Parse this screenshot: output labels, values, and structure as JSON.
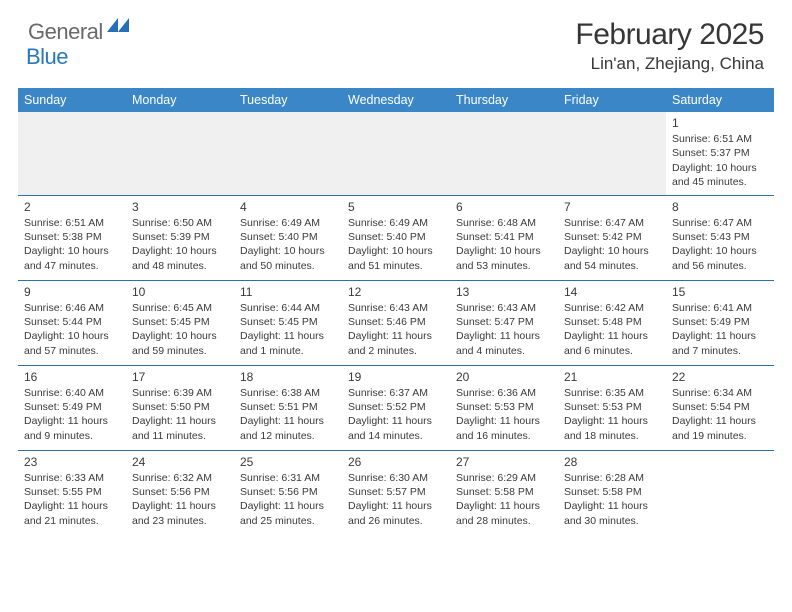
{
  "logo": {
    "text1": "General",
    "text2": "Blue",
    "color1": "#6a6a6a",
    "color2": "#2978bd"
  },
  "title": "February 2025",
  "location": "Lin'an, Zhejiang, China",
  "header_bg": "#3b86c6",
  "header_fg": "#ffffff",
  "sep_color": "#2e6fa8",
  "blank_bg": "#f0f0f0",
  "weekdays": [
    "Sunday",
    "Monday",
    "Tuesday",
    "Wednesday",
    "Thursday",
    "Friday",
    "Saturday"
  ],
  "weeks": [
    [
      null,
      null,
      null,
      null,
      null,
      null,
      {
        "d": "1",
        "sr": "Sunrise: 6:51 AM",
        "ss": "Sunset: 5:37 PM",
        "dl": "Daylight: 10 hours and 45 minutes."
      }
    ],
    [
      {
        "d": "2",
        "sr": "Sunrise: 6:51 AM",
        "ss": "Sunset: 5:38 PM",
        "dl": "Daylight: 10 hours and 47 minutes."
      },
      {
        "d": "3",
        "sr": "Sunrise: 6:50 AM",
        "ss": "Sunset: 5:39 PM",
        "dl": "Daylight: 10 hours and 48 minutes."
      },
      {
        "d": "4",
        "sr": "Sunrise: 6:49 AM",
        "ss": "Sunset: 5:40 PM",
        "dl": "Daylight: 10 hours and 50 minutes."
      },
      {
        "d": "5",
        "sr": "Sunrise: 6:49 AM",
        "ss": "Sunset: 5:40 PM",
        "dl": "Daylight: 10 hours and 51 minutes."
      },
      {
        "d": "6",
        "sr": "Sunrise: 6:48 AM",
        "ss": "Sunset: 5:41 PM",
        "dl": "Daylight: 10 hours and 53 minutes."
      },
      {
        "d": "7",
        "sr": "Sunrise: 6:47 AM",
        "ss": "Sunset: 5:42 PM",
        "dl": "Daylight: 10 hours and 54 minutes."
      },
      {
        "d": "8",
        "sr": "Sunrise: 6:47 AM",
        "ss": "Sunset: 5:43 PM",
        "dl": "Daylight: 10 hours and 56 minutes."
      }
    ],
    [
      {
        "d": "9",
        "sr": "Sunrise: 6:46 AM",
        "ss": "Sunset: 5:44 PM",
        "dl": "Daylight: 10 hours and 57 minutes."
      },
      {
        "d": "10",
        "sr": "Sunrise: 6:45 AM",
        "ss": "Sunset: 5:45 PM",
        "dl": "Daylight: 10 hours and 59 minutes."
      },
      {
        "d": "11",
        "sr": "Sunrise: 6:44 AM",
        "ss": "Sunset: 5:45 PM",
        "dl": "Daylight: 11 hours and 1 minute."
      },
      {
        "d": "12",
        "sr": "Sunrise: 6:43 AM",
        "ss": "Sunset: 5:46 PM",
        "dl": "Daylight: 11 hours and 2 minutes."
      },
      {
        "d": "13",
        "sr": "Sunrise: 6:43 AM",
        "ss": "Sunset: 5:47 PM",
        "dl": "Daylight: 11 hours and 4 minutes."
      },
      {
        "d": "14",
        "sr": "Sunrise: 6:42 AM",
        "ss": "Sunset: 5:48 PM",
        "dl": "Daylight: 11 hours and 6 minutes."
      },
      {
        "d": "15",
        "sr": "Sunrise: 6:41 AM",
        "ss": "Sunset: 5:49 PM",
        "dl": "Daylight: 11 hours and 7 minutes."
      }
    ],
    [
      {
        "d": "16",
        "sr": "Sunrise: 6:40 AM",
        "ss": "Sunset: 5:49 PM",
        "dl": "Daylight: 11 hours and 9 minutes."
      },
      {
        "d": "17",
        "sr": "Sunrise: 6:39 AM",
        "ss": "Sunset: 5:50 PM",
        "dl": "Daylight: 11 hours and 11 minutes."
      },
      {
        "d": "18",
        "sr": "Sunrise: 6:38 AM",
        "ss": "Sunset: 5:51 PM",
        "dl": "Daylight: 11 hours and 12 minutes."
      },
      {
        "d": "19",
        "sr": "Sunrise: 6:37 AM",
        "ss": "Sunset: 5:52 PM",
        "dl": "Daylight: 11 hours and 14 minutes."
      },
      {
        "d": "20",
        "sr": "Sunrise: 6:36 AM",
        "ss": "Sunset: 5:53 PM",
        "dl": "Daylight: 11 hours and 16 minutes."
      },
      {
        "d": "21",
        "sr": "Sunrise: 6:35 AM",
        "ss": "Sunset: 5:53 PM",
        "dl": "Daylight: 11 hours and 18 minutes."
      },
      {
        "d": "22",
        "sr": "Sunrise: 6:34 AM",
        "ss": "Sunset: 5:54 PM",
        "dl": "Daylight: 11 hours and 19 minutes."
      }
    ],
    [
      {
        "d": "23",
        "sr": "Sunrise: 6:33 AM",
        "ss": "Sunset: 5:55 PM",
        "dl": "Daylight: 11 hours and 21 minutes."
      },
      {
        "d": "24",
        "sr": "Sunrise: 6:32 AM",
        "ss": "Sunset: 5:56 PM",
        "dl": "Daylight: 11 hours and 23 minutes."
      },
      {
        "d": "25",
        "sr": "Sunrise: 6:31 AM",
        "ss": "Sunset: 5:56 PM",
        "dl": "Daylight: 11 hours and 25 minutes."
      },
      {
        "d": "26",
        "sr": "Sunrise: 6:30 AM",
        "ss": "Sunset: 5:57 PM",
        "dl": "Daylight: 11 hours and 26 minutes."
      },
      {
        "d": "27",
        "sr": "Sunrise: 6:29 AM",
        "ss": "Sunset: 5:58 PM",
        "dl": "Daylight: 11 hours and 28 minutes."
      },
      {
        "d": "28",
        "sr": "Sunrise: 6:28 AM",
        "ss": "Sunset: 5:58 PM",
        "dl": "Daylight: 11 hours and 30 minutes."
      },
      null
    ]
  ]
}
